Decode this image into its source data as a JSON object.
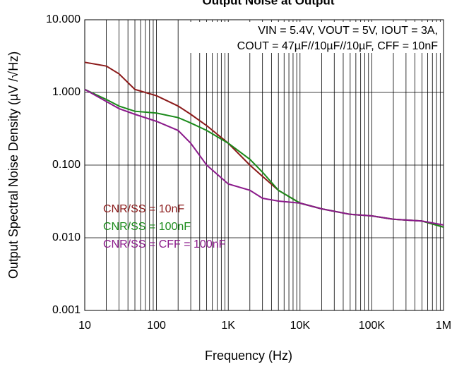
{
  "chart_data": {
    "type": "line",
    "title": "Output Noise at Output",
    "xlabel": "Frequency (Hz)",
    "ylabel": "Output Spectral Noise Density (µV /√Hz)",
    "annotations": [
      "VIN = 5.4V, VOUT = 5V, IOUT = 3A,",
      "COUT = 47µF//10µF//10µF, CFF = 10nF"
    ],
    "xscale": "log",
    "yscale": "log",
    "grid": true,
    "legend": "lower left",
    "xlim": [
      10,
      1000000
    ],
    "ylim": [
      0.001,
      10
    ],
    "xticks": [
      10,
      100,
      {
        "value": 1000,
        "label": "1K"
      },
      {
        "value": 10000,
        "label": "10K"
      },
      {
        "value": 100000,
        "label": "100K"
      },
      {
        "value": 1000000,
        "label": "1M"
      }
    ],
    "yticks": [
      {
        "value": 0.001,
        "label": "0.001"
      },
      {
        "value": 0.01,
        "label": "0.010"
      },
      {
        "value": 0.1,
        "label": "0.100"
      },
      {
        "value": 1,
        "label": "1.000"
      },
      {
        "value": 10,
        "label": "10.000"
      }
    ],
    "x": [
      10,
      20,
      30,
      50,
      100,
      200,
      300,
      500,
      1000,
      2000,
      3000,
      5000,
      10000,
      20000,
      50000,
      100000,
      200000,
      500000,
      1000000
    ],
    "series": [
      {
        "name": "CNR/SS = 10nF",
        "color": "#8b1a1a",
        "values": [
          2.6,
          2.3,
          1.8,
          1.1,
          0.9,
          0.65,
          0.5,
          0.35,
          0.2,
          0.1,
          0.07,
          0.045,
          0.03,
          0.025,
          0.021,
          0.02,
          0.018,
          0.017,
          0.014
        ]
      },
      {
        "name": "CNR/SS = 100nF",
        "color": "#1a8a1a",
        "values": [
          1.1,
          0.8,
          0.65,
          0.55,
          0.52,
          0.45,
          0.38,
          0.3,
          0.2,
          0.12,
          0.08,
          0.045,
          0.03,
          0.025,
          0.021,
          0.02,
          0.018,
          0.017,
          0.014
        ]
      },
      {
        "name": "CNR/SS = CFF = 100nF",
        "color": "#8b1a8b",
        "values": [
          1.1,
          0.75,
          0.6,
          0.5,
          0.4,
          0.3,
          0.2,
          0.1,
          0.055,
          0.045,
          0.035,
          0.032,
          0.03,
          0.025,
          0.021,
          0.02,
          0.018,
          0.017,
          0.015
        ]
      }
    ]
  }
}
